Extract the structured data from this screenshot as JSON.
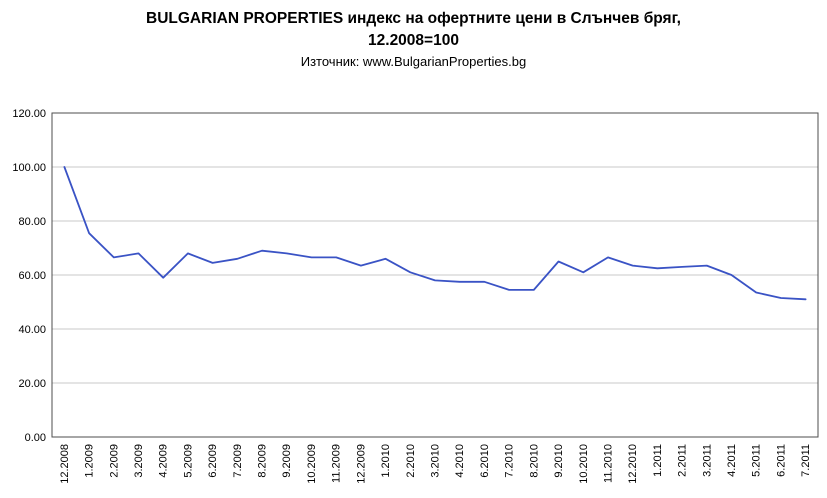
{
  "header": {
    "title_line1": "BULGARIAN PROPERTIES индекс на офертните цени в Слънчев бряг,",
    "title_line2": "12.2008=100",
    "source": "Източник: www.BulgarianProperties.bg"
  },
  "chart_data": {
    "type": "line",
    "title": "BULGARIAN PROPERTIES индекс на офертните цени в Слънчев бряг, 12.2008=100",
    "subtitle": "Източник: www.BulgarianProperties.bg",
    "categories": [
      "12.2008",
      "1.2009",
      "2.2009",
      "3.2009",
      "4.2009",
      "5.2009",
      "6.2009",
      "7.2009",
      "8.2009",
      "9.2009",
      "10.2009",
      "11.2009",
      "12.2009",
      "1.2010",
      "2.2010",
      "3.2010",
      "4.2010",
      "6.2010",
      "7.2010",
      "8.2010",
      "9.2010",
      "10.2010",
      "11.2010",
      "12.2010",
      "1.2011",
      "2.2011",
      "3.2011",
      "4.2011",
      "5.2011",
      "6.2011",
      "7.2011"
    ],
    "values": [
      100,
      75.5,
      66.5,
      68,
      59,
      68,
      64.5,
      66,
      69,
      68,
      66.5,
      66.5,
      63.5,
      66,
      61,
      58,
      57.5,
      57.5,
      54.5,
      54.5,
      65,
      61,
      66.5,
      63.5,
      62.5,
      63,
      63.5,
      60,
      53.5,
      51.5,
      51
    ],
    "xlabel": "",
    "ylabel": "",
    "ylim": [
      0,
      120
    ],
    "ytick_step": 20,
    "ytick_labels": [
      "0.00",
      "20.00",
      "40.00",
      "60.00",
      "80.00",
      "100.00",
      "120.00"
    ],
    "grid": true,
    "legend": "none",
    "line_color": "#3A53C5",
    "grid_color": "#c9c9c9",
    "border_color": "#4d4d4d",
    "text_color": "#000000",
    "background_color": "#ffffff"
  }
}
